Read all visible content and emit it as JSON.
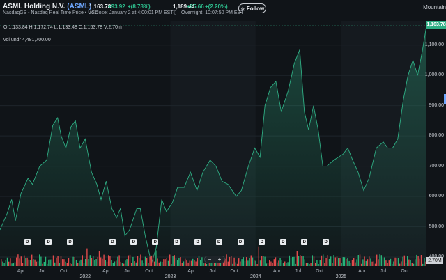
{
  "header": {
    "company": "ASML Holding N.V.",
    "ticker": "(ASML)",
    "subtitle": "NasdaqGS - Nasdaq Real Time Price • USD",
    "close": {
      "price": "1,163.78",
      "change": "+93.92",
      "pct": "+(8.78%)",
      "time": "At close: January 2 at 4:00:01 PM EST"
    },
    "overnight": {
      "price": "1,189.44",
      "change": "+25.66",
      "pct": "+(2.20%)",
      "time": "Overnight: 10:07:50 PM EST"
    },
    "follow_label": "Follow",
    "chart_style": "Mountain"
  },
  "readout": {
    "ohlc": "O:1,133.84  H:1,172.74  L:1,133.48  C:1,163.78  V:2.70m",
    "volume": "vol undr   4,481,700.00"
  },
  "badges": {
    "last_price": "1,163.78",
    "last_volume": "2.70M"
  },
  "zoom": {
    "minus": "−",
    "plus": "+"
  },
  "dividend_label": "D",
  "icons": {
    "follow": "star-icon",
    "overnight": "moon-icon"
  },
  "colors": {
    "accent": "#2fae84",
    "up_volume": "#27b478",
    "down_volume": "#e04b4b",
    "link": "#6fa8ff",
    "background": "#101418"
  },
  "chart_data": {
    "type": "area",
    "title": "",
    "xlabel": "",
    "ylabel": "",
    "ylim": [
      370,
      1180
    ],
    "y_ticks": [
      "400.00",
      "500.00",
      "600.00",
      "700.00",
      "800.00",
      "900.00",
      "1,000.00",
      "1,100.00"
    ],
    "x_ticks": [
      {
        "label": "Apr",
        "date": "2021-04-01"
      },
      {
        "label": "Jul",
        "date": "2021-07-01"
      },
      {
        "label": "Oct",
        "date": "2021-10-01"
      },
      {
        "label": "Apr",
        "date": "2022-04-01"
      },
      {
        "label": "Jul",
        "date": "2022-07-01"
      },
      {
        "label": "Oct",
        "date": "2022-10-01"
      },
      {
        "label": "Apr",
        "date": "2023-04-01"
      },
      {
        "label": "Jul",
        "date": "2023-07-01"
      },
      {
        "label": "Oct",
        "date": "2023-10-01"
      },
      {
        "label": "Apr",
        "date": "2024-04-01"
      },
      {
        "label": "Jul",
        "date": "2024-07-01"
      },
      {
        "label": "Oct",
        "date": "2024-10-01"
      },
      {
        "label": "Apr",
        "date": "2025-04-01"
      },
      {
        "label": "Jul",
        "date": "2025-07-01"
      },
      {
        "label": "Oct",
        "date": "2025-10-01"
      }
    ],
    "year_ticks": [
      {
        "label": "2022",
        "date": "2022-01-01"
      },
      {
        "label": "2023",
        "date": "2023-01-01"
      },
      {
        "label": "2024",
        "date": "2024-01-01"
      },
      {
        "label": "2025",
        "date": "2025-01-01"
      }
    ],
    "x_range": [
      "2021-01-01",
      "2026-01-02"
    ],
    "dividend_dates": [
      "2021-04-28",
      "2021-07-28",
      "2021-10-28",
      "2022-04-28",
      "2022-07-28",
      "2022-10-28",
      "2023-01-28",
      "2023-04-28",
      "2023-07-28",
      "2023-10-28",
      "2024-01-28",
      "2024-04-28",
      "2024-07-28",
      "2024-10-28"
    ],
    "grid": true,
    "series": [
      {
        "values": [
          [
            "2021-01-01",
            490
          ],
          [
            "2021-02-01",
            545
          ],
          [
            "2021-02-20",
            590
          ],
          [
            "2021-03-08",
            520
          ],
          [
            "2021-04-01",
            610
          ],
          [
            "2021-05-01",
            660
          ],
          [
            "2021-05-20",
            640
          ],
          [
            "2021-06-20",
            700
          ],
          [
            "2021-07-20",
            720
          ],
          [
            "2021-08-15",
            835
          ],
          [
            "2021-09-05",
            860
          ],
          [
            "2021-09-20",
            800
          ],
          [
            "2021-10-10",
            760
          ],
          [
            "2021-11-01",
            830
          ],
          [
            "2021-11-20",
            850
          ],
          [
            "2021-12-10",
            760
          ],
          [
            "2022-01-01",
            790
          ],
          [
            "2022-01-28",
            680
          ],
          [
            "2022-02-20",
            640
          ],
          [
            "2022-03-10",
            590
          ],
          [
            "2022-04-01",
            650
          ],
          [
            "2022-04-25",
            560
          ],
          [
            "2022-05-15",
            530
          ],
          [
            "2022-06-01",
            560
          ],
          [
            "2022-06-20",
            470
          ],
          [
            "2022-07-10",
            490
          ],
          [
            "2022-08-10",
            560
          ],
          [
            "2022-08-25",
            560
          ],
          [
            "2022-09-15",
            470
          ],
          [
            "2022-10-12",
            380
          ],
          [
            "2022-11-01",
            430
          ],
          [
            "2022-11-25",
            590
          ],
          [
            "2022-12-15",
            550
          ],
          [
            "2023-01-10",
            580
          ],
          [
            "2023-02-01",
            630
          ],
          [
            "2023-03-01",
            630
          ],
          [
            "2023-03-28",
            680
          ],
          [
            "2023-04-25",
            620
          ],
          [
            "2023-05-20",
            680
          ],
          [
            "2023-06-20",
            720
          ],
          [
            "2023-07-15",
            700
          ],
          [
            "2023-08-10",
            650
          ],
          [
            "2023-09-05",
            640
          ],
          [
            "2023-10-10",
            600
          ],
          [
            "2023-11-01",
            620
          ],
          [
            "2023-12-01",
            700
          ],
          [
            "2023-12-28",
            760
          ],
          [
            "2024-01-20",
            730
          ],
          [
            "2024-02-10",
            900
          ],
          [
            "2024-03-05",
            960
          ],
          [
            "2024-03-28",
            980
          ],
          [
            "2024-04-20",
            880
          ],
          [
            "2024-05-20",
            950
          ],
          [
            "2024-06-15",
            1040
          ],
          [
            "2024-07-08",
            1085
          ],
          [
            "2024-07-28",
            880
          ],
          [
            "2024-08-15",
            820
          ],
          [
            "2024-09-05",
            900
          ],
          [
            "2024-09-25",
            820
          ],
          [
            "2024-10-15",
            700
          ],
          [
            "2024-11-01",
            700
          ],
          [
            "2024-12-01",
            720
          ],
          [
            "2025-01-10",
            740
          ],
          [
            "2025-01-30",
            760
          ],
          [
            "2025-02-20",
            720
          ],
          [
            "2025-03-15",
            680
          ],
          [
            "2025-04-08",
            620
          ],
          [
            "2025-05-01",
            660
          ],
          [
            "2025-06-01",
            760
          ],
          [
            "2025-07-01",
            780
          ],
          [
            "2025-07-20",
            760
          ],
          [
            "2025-08-10",
            760
          ],
          [
            "2025-09-01",
            790
          ],
          [
            "2025-09-25",
            920
          ],
          [
            "2025-10-15",
            1000
          ],
          [
            "2025-11-05",
            1050
          ],
          [
            "2025-11-25",
            1000
          ],
          [
            "2025-12-15",
            1080
          ],
          [
            "2026-01-02",
            1163.78
          ]
        ]
      }
    ]
  }
}
